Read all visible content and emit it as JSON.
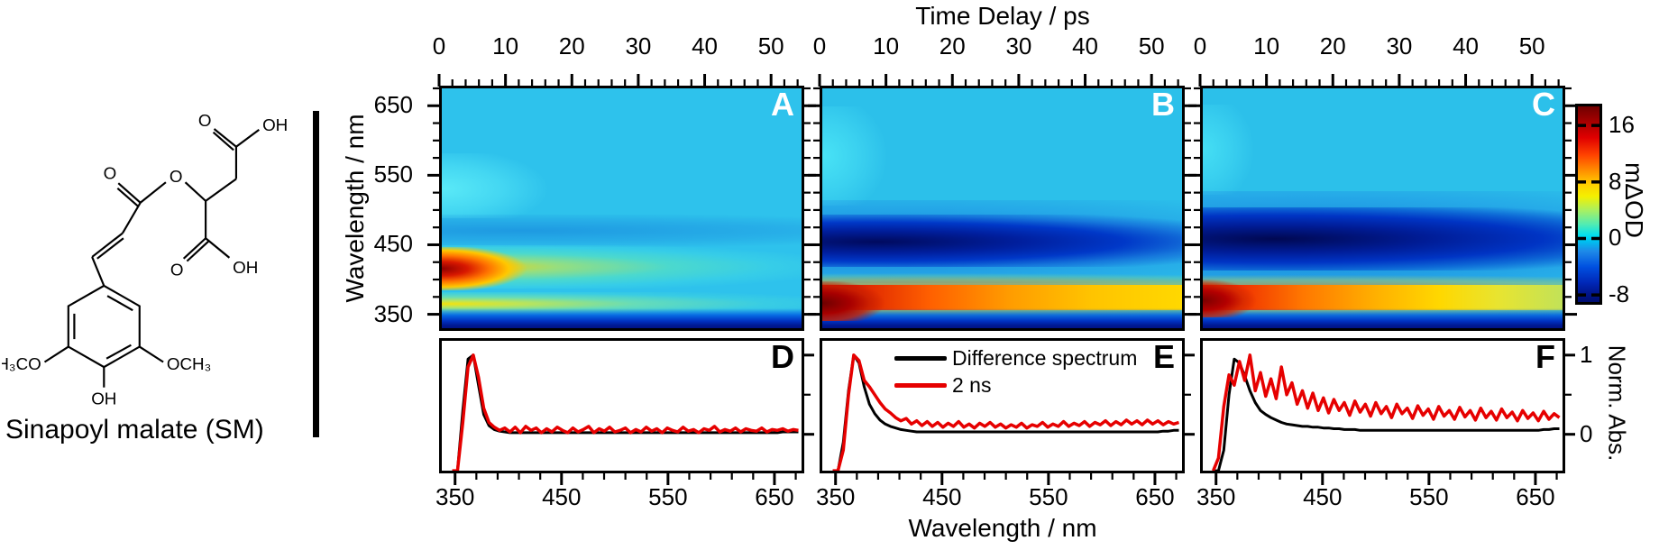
{
  "molecule": {
    "caption": "Sinapoyl malate (SM)",
    "atom_labels": {
      "top_carboxyl_o": "O",
      "top_carboxyl_oh": "OH",
      "ester_o": "O",
      "carbonyl_o": "O",
      "side_carboxyl_o": "O",
      "side_carboxyl_oh": "OH",
      "left_methoxy": "H₃CO",
      "right_methoxy": "OCH₃",
      "phenol_oh": "OH"
    }
  },
  "axes": {
    "top_title": "Time Delay / ps",
    "bottom_title": "Wavelength / nm",
    "left_title": "Wavelength / nm",
    "colorbar_title": "mΔOD",
    "norm_title": "Norm. Abs.",
    "time_ticks": [
      0,
      10,
      20,
      30,
      40,
      50
    ],
    "time_range_ps": [
      0,
      55
    ],
    "wavelength_ticks": [
      350,
      450,
      550,
      650
    ],
    "wavelength_range_nm": [
      330,
      675
    ],
    "colorbar_ticks": [
      16,
      8,
      0,
      -8
    ],
    "colorbar_range": [
      -9,
      18.7
    ],
    "norm_ticks": [
      1,
      0
    ]
  },
  "panels": {
    "letters": [
      "A",
      "B",
      "C",
      "D",
      "E",
      "F"
    ]
  },
  "legend": {
    "items": [
      {
        "label": "Difference spectrum",
        "color": "#000000"
      },
      {
        "label": "2 ns",
        "color": "#e60000"
      }
    ]
  },
  "colors": {
    "curve_black": "#000000",
    "curve_red": "#e60000",
    "heatmap_background_cyan": "#2ec2ec",
    "bleach_navy": "#000a5e",
    "hot_spot_dark_red": "#8f0000",
    "panel_letter_on_heatmap": "#ffffff",
    "panel_letter_on_spectrum": "#000000"
  },
  "chart_data": [
    {
      "id": "A",
      "type": "heatmap",
      "x_axis": "Time Delay / ps",
      "x_range": [
        0,
        55
      ],
      "y_axis": "Wavelength / nm",
      "y_range": [
        330,
        675
      ],
      "color_axis": {
        "label": "mΔOD",
        "ticks": [
          16,
          8,
          0,
          -8
        ],
        "range": [
          -9,
          18.7
        ],
        "colormap": "jet"
      },
      "features": [
        {
          "name": "ESA hot spot",
          "time_ps": [
            0,
            4
          ],
          "wavelength_nm": [
            405,
            440
          ],
          "peak_mdOD": 17
        },
        {
          "name": "ESA band decaying",
          "wavelength_nm": [
            395,
            440
          ],
          "mdOD_early_late": [
            10,
            2
          ]
        },
        {
          "name": "lower yellow band",
          "wavelength_nm": [
            355,
            372
          ],
          "mdOD_early_late": [
            9,
            3
          ]
        },
        {
          "name": "deep-blue bleach edge",
          "wavelength_nm": [
            330,
            347
          ],
          "mdOD": -8
        },
        {
          "name": "cyan background",
          "mdOD": 2
        }
      ]
    },
    {
      "id": "B",
      "type": "heatmap",
      "x_axis": "Time Delay / ps",
      "x_range": [
        0,
        55
      ],
      "y_axis": "Wavelength / nm",
      "y_range": [
        330,
        675
      ],
      "color_axis": {
        "label": "mΔOD",
        "ticks": [
          16,
          8,
          0,
          -8
        ],
        "range": [
          -9,
          18.7
        ],
        "colormap": "jet"
      },
      "features": [
        {
          "name": "ground-state bleach blob",
          "wavelength_nm": [
            428,
            482
          ],
          "peak_mdOD": -9,
          "duration": "persists to 55 ps"
        },
        {
          "name": "red product band",
          "wavelength_nm": [
            356,
            394
          ],
          "mdOD_early_late": [
            18,
            8
          ]
        },
        {
          "name": "deep-blue bleach edge",
          "wavelength_nm": [
            330,
            347
          ],
          "mdOD": -8
        },
        {
          "name": "cyan background",
          "mdOD": 2
        }
      ]
    },
    {
      "id": "C",
      "type": "heatmap",
      "x_axis": "Time Delay / ps",
      "x_range": [
        0,
        55
      ],
      "y_axis": "Wavelength / nm",
      "y_range": [
        330,
        675
      ],
      "color_axis": {
        "label": "mΔOD",
        "ticks": [
          16,
          8,
          0,
          -8
        ],
        "range": [
          -9,
          18.7
        ],
        "colormap": "jet"
      },
      "features": [
        {
          "name": "ground-state bleach blob",
          "wavelength_nm": [
            425,
            490
          ],
          "peak_mdOD": -9,
          "duration": "persists to 55 ps"
        },
        {
          "name": "red product band fading to yellow-green",
          "wavelength_nm": [
            356,
            392
          ],
          "mdOD_early_late": [
            17,
            6
          ]
        },
        {
          "name": "deep-blue bleach edge",
          "wavelength_nm": [
            330,
            347
          ],
          "mdOD": -8
        },
        {
          "name": "cyan background",
          "mdOD": 2
        }
      ]
    },
    {
      "id": "D",
      "type": "line",
      "x_axis": "Wavelength / nm",
      "x_start_nm": 345,
      "x_step_nm": 5,
      "n_points": 67,
      "y_axis": {
        "label": "Norm. Abs.",
        "ticks": [
          1,
          0
        ]
      },
      "series": [
        {
          "name": "Difference spectrum",
          "color": "#000000",
          "values": [
            -0.46,
            -0.46,
            0.3,
            0.95,
            1.0,
            0.62,
            0.25,
            0.11,
            0.06,
            0.04,
            0.03,
            0.02,
            0.02,
            0.02,
            0.02,
            0.02,
            0.02,
            0.02,
            0.02,
            0.02,
            0.02,
            0.02,
            0.02,
            0.02,
            0.02,
            0.02,
            0.02,
            0.02,
            0.02,
            0.02,
            0.02,
            0.02,
            0.02,
            0.02,
            0.02,
            0.02,
            0.02,
            0.02,
            0.02,
            0.02,
            0.02,
            0.02,
            0.02,
            0.02,
            0.02,
            0.02,
            0.02,
            0.02,
            0.02,
            0.02,
            0.02,
            0.02,
            0.02,
            0.02,
            0.02,
            0.02,
            0.02,
            0.02,
            0.02,
            0.02,
            0.02,
            0.02,
            0.02,
            0.03,
            0.03,
            0.03,
            0.03
          ]
        },
        {
          "name": "2 ns",
          "color": "#e60000",
          "values": [
            -0.46,
            -0.46,
            0.15,
            0.85,
            1.0,
            0.72,
            0.33,
            0.15,
            0.09,
            0.05,
            0.08,
            0.03,
            0.09,
            0.02,
            0.1,
            0.05,
            0.08,
            0.02,
            0.07,
            0.03,
            0.09,
            0.05,
            0.02,
            0.08,
            0.03,
            0.06,
            0.1,
            0.02,
            0.07,
            0.04,
            0.09,
            0.03,
            0.05,
            0.08,
            0.02,
            0.06,
            0.03,
            0.09,
            0.04,
            0.07,
            0.02,
            0.08,
            0.05,
            0.03,
            0.09,
            0.04,
            0.06,
            0.02,
            0.07,
            0.05,
            0.1,
            0.03,
            0.06,
            0.04,
            0.08,
            0.03,
            0.07,
            0.05,
            0.04,
            0.08,
            0.03,
            0.06,
            0.05,
            0.07,
            0.04,
            0.06,
            0.05
          ]
        }
      ]
    },
    {
      "id": "E",
      "type": "line",
      "x_axis": "Wavelength / nm",
      "x_start_nm": 345,
      "x_step_nm": 5,
      "n_points": 67,
      "y_axis": {
        "label": "Norm. Abs.",
        "ticks": [
          1,
          0
        ]
      },
      "series": [
        {
          "name": "Difference spectrum",
          "color": "#000000",
          "values": [
            -0.46,
            -0.46,
            -0.1,
            0.55,
            1.0,
            0.9,
            0.6,
            0.38,
            0.26,
            0.18,
            0.13,
            0.1,
            0.08,
            0.06,
            0.05,
            0.04,
            0.03,
            0.03,
            0.03,
            0.03,
            0.03,
            0.03,
            0.03,
            0.03,
            0.03,
            0.03,
            0.03,
            0.03,
            0.03,
            0.03,
            0.03,
            0.03,
            0.03,
            0.03,
            0.03,
            0.03,
            0.03,
            0.03,
            0.03,
            0.03,
            0.03,
            0.03,
            0.03,
            0.03,
            0.03,
            0.03,
            0.03,
            0.03,
            0.03,
            0.03,
            0.03,
            0.03,
            0.03,
            0.03,
            0.03,
            0.03,
            0.03,
            0.03,
            0.03,
            0.03,
            0.03,
            0.03,
            0.03,
            0.04,
            0.04,
            0.05,
            0.05
          ]
        },
        {
          "name": "2 ns",
          "color": "#e60000",
          "values": [
            -0.46,
            -0.46,
            -0.2,
            0.5,
            1.0,
            0.93,
            0.68,
            0.6,
            0.5,
            0.4,
            0.32,
            0.27,
            0.21,
            0.17,
            0.2,
            0.13,
            0.17,
            0.11,
            0.16,
            0.1,
            0.15,
            0.09,
            0.14,
            0.1,
            0.16,
            0.09,
            0.13,
            0.08,
            0.14,
            0.1,
            0.15,
            0.09,
            0.13,
            0.08,
            0.12,
            0.09,
            0.14,
            0.08,
            0.12,
            0.1,
            0.15,
            0.09,
            0.13,
            0.1,
            0.16,
            0.1,
            0.14,
            0.11,
            0.16,
            0.1,
            0.15,
            0.12,
            0.17,
            0.11,
            0.16,
            0.12,
            0.18,
            0.13,
            0.17,
            0.12,
            0.18,
            0.13,
            0.17,
            0.12,
            0.16,
            0.13,
            0.15
          ]
        }
      ]
    },
    {
      "id": "F",
      "type": "line",
      "x_axis": "Wavelength / nm",
      "x_start_nm": 345,
      "x_step_nm": 5,
      "n_points": 67,
      "y_axis": {
        "label": "Norm. Abs.",
        "ticks": [
          1,
          0
        ]
      },
      "series": [
        {
          "name": "Difference spectrum",
          "color": "#000000",
          "values": [
            -0.46,
            -0.46,
            -0.2,
            0.5,
            0.95,
            0.9,
            0.74,
            0.55,
            0.4,
            0.3,
            0.25,
            0.21,
            0.18,
            0.15,
            0.13,
            0.12,
            0.11,
            0.1,
            0.1,
            0.09,
            0.09,
            0.08,
            0.08,
            0.07,
            0.07,
            0.06,
            0.06,
            0.06,
            0.05,
            0.05,
            0.05,
            0.05,
            0.05,
            0.05,
            0.05,
            0.05,
            0.05,
            0.05,
            0.05,
            0.05,
            0.05,
            0.05,
            0.05,
            0.05,
            0.05,
            0.05,
            0.05,
            0.05,
            0.05,
            0.05,
            0.05,
            0.05,
            0.05,
            0.05,
            0.05,
            0.05,
            0.05,
            0.05,
            0.05,
            0.05,
            0.05,
            0.05,
            0.05,
            0.06,
            0.06,
            0.07,
            0.07
          ]
        },
        {
          "name": "2 ns",
          "color": "#e60000",
          "values": [
            -0.46,
            -0.3,
            0.35,
            0.75,
            0.62,
            0.92,
            0.68,
            1.0,
            0.55,
            0.78,
            0.48,
            0.7,
            0.45,
            0.85,
            0.5,
            0.65,
            0.38,
            0.55,
            0.33,
            0.52,
            0.3,
            0.46,
            0.27,
            0.44,
            0.3,
            0.4,
            0.24,
            0.42,
            0.28,
            0.38,
            0.23,
            0.4,
            0.26,
            0.35,
            0.21,
            0.38,
            0.26,
            0.33,
            0.2,
            0.36,
            0.24,
            0.32,
            0.19,
            0.35,
            0.23,
            0.3,
            0.19,
            0.34,
            0.22,
            0.3,
            0.18,
            0.33,
            0.21,
            0.29,
            0.18,
            0.32,
            0.21,
            0.28,
            0.17,
            0.3,
            0.2,
            0.27,
            0.17,
            0.29,
            0.19,
            0.26,
            0.21
          ]
        }
      ]
    }
  ]
}
